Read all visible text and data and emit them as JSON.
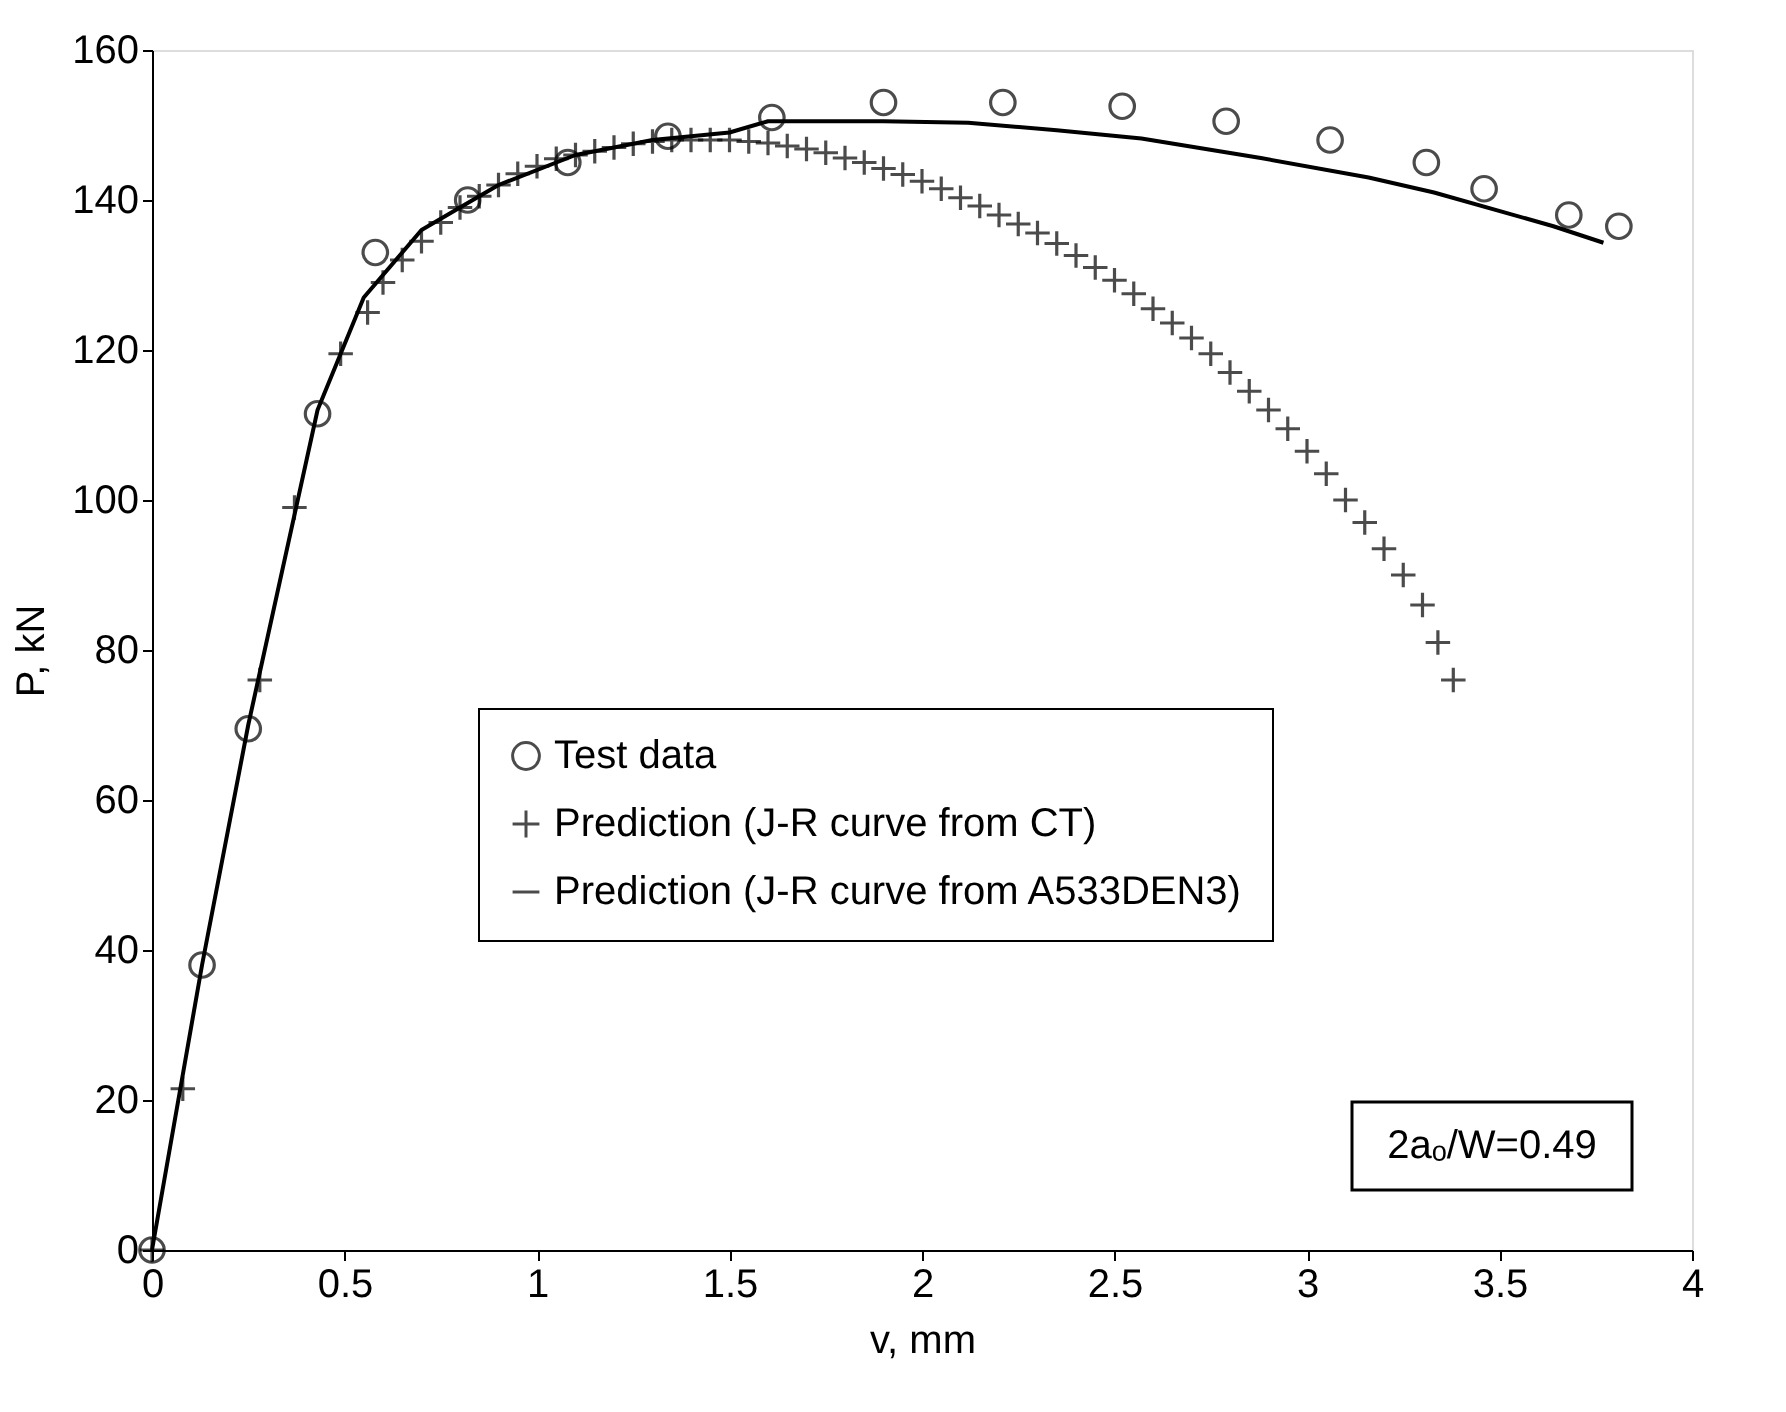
{
  "chart_data": {
    "type": "scatter",
    "xlabel": "v,  mm",
    "ylabel": "P,  kN",
    "xlim": [
      0,
      4
    ],
    "xticks": [
      0,
      0.5,
      1,
      1.5,
      2,
      2.5,
      3,
      3.5,
      4
    ],
    "ylim": [
      0,
      160
    ],
    "yticks": [
      0,
      20,
      40,
      60,
      80,
      100,
      120,
      140,
      160
    ],
    "grid": false,
    "legend": "bottom right",
    "annotations": [
      "2aₒ/W=0.49"
    ],
    "series": [
      {
        "name": "Test data",
        "marker": "circle",
        "color": "#000000",
        "x": [
          0,
          0.13,
          0.25,
          0.43,
          0.58,
          0.82,
          1.08,
          1.34,
          1.61,
          1.9,
          2.21,
          2.52,
          2.79,
          3.06,
          3.31,
          3.46,
          3.68,
          3.81
        ],
        "values": [
          0,
          38,
          69.5,
          111.5,
          133,
          140,
          145,
          148.5,
          151,
          153,
          153,
          152.5,
          150.5,
          148,
          145,
          141.5,
          138,
          136.5
        ]
      },
      {
        "name": "Prediction (J-R curve from CT)",
        "marker": "cross",
        "color": "#000000",
        "x": [
          0,
          0.08,
          0.28,
          0.37,
          0.49,
          0.56,
          0.6,
          0.65,
          0.7,
          0.75,
          0.8,
          0.85,
          0.9,
          0.95,
          1.0,
          1.05,
          1.1,
          1.15,
          1.2,
          1.25,
          1.3,
          1.35,
          1.4,
          1.45,
          1.5,
          1.55,
          1.6,
          1.65,
          1.7,
          1.75,
          1.8,
          1.85,
          1.9,
          1.95,
          2.0,
          2.05,
          2.1,
          2.15,
          2.2,
          2.25,
          2.3,
          2.35,
          2.4,
          2.45,
          2.5,
          2.55,
          2.6,
          2.65,
          2.7,
          2.75,
          2.8,
          2.85,
          2.9,
          2.95,
          3.0,
          3.05,
          3.1,
          3.15,
          3.2,
          3.25,
          3.3,
          3.34,
          3.38
        ],
        "values": [
          0,
          21.5,
          76,
          99,
          119.5,
          125,
          129,
          132,
          134.5,
          137,
          139,
          140.5,
          142,
          143.5,
          144.5,
          145.5,
          146,
          146.5,
          147,
          147.5,
          147.8,
          148,
          148,
          148,
          148,
          147.8,
          147.6,
          147.2,
          146.8,
          146.3,
          145.6,
          145,
          144.2,
          143.4,
          142.5,
          141.5,
          140.3,
          139.2,
          138,
          136.8,
          135.6,
          134.2,
          132.6,
          131,
          129.3,
          127.5,
          125.5,
          123.6,
          121.6,
          119.5,
          117,
          114.5,
          112,
          109.5,
          106.5,
          103.5,
          100,
          97,
          93.5,
          90,
          86,
          81,
          76
        ]
      },
      {
        "name": "Prediction (J-R curve from A533DEN3)",
        "type": "line",
        "marker": "none",
        "line_style": "solid",
        "color": "#000000",
        "x": [
          0,
          0.13,
          0.25,
          0.43,
          0.55,
          0.7,
          0.9,
          1.1,
          1.3,
          1.5,
          1.6,
          1.78,
          1.9,
          2.12,
          2.35,
          2.57,
          2.88,
          3.16,
          3.33,
          3.64,
          3.77
        ],
        "values": [
          0,
          38,
          70,
          112,
          127,
          136,
          142,
          146,
          148,
          149,
          150.5,
          150.5,
          150.5,
          150.3,
          149.3,
          148.2,
          145.6,
          143,
          141,
          136.5,
          134.3
        ]
      }
    ]
  }
}
